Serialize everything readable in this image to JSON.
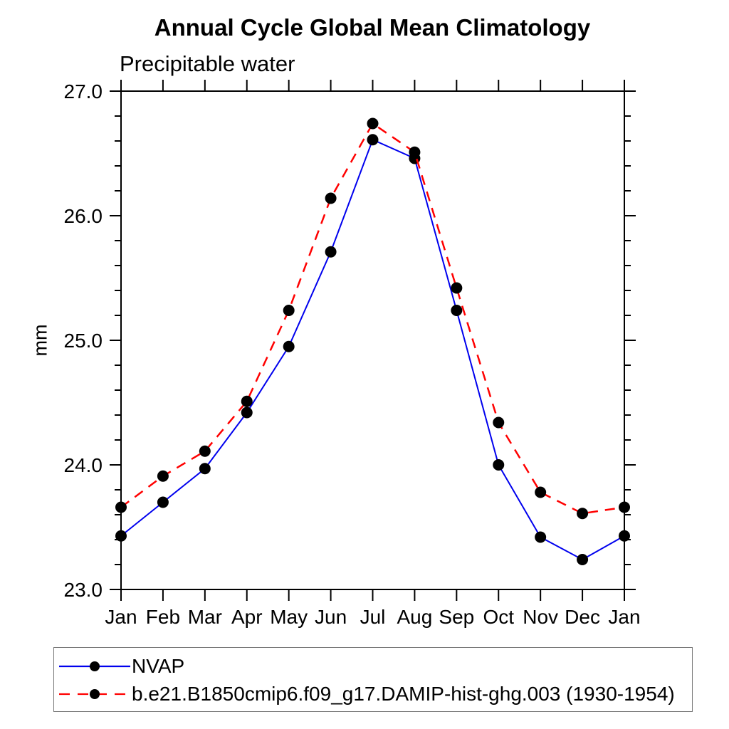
{
  "title": "Annual Cycle Global Mean Climatology",
  "subtitle": "Precipitable water",
  "ylabel": "mm",
  "legend": {
    "position": "bottom",
    "entries": [
      {
        "label": "NVAP",
        "color": "#0000ee",
        "style": "solid",
        "marker": "circle",
        "marker_color": "#000000"
      },
      {
        "label": "b.e21.B1850cmip6.f09_g17.DAMIP-hist-ghg.003 (1930-1954)",
        "color": "#ff0000",
        "style": "dashed",
        "marker": "circle",
        "marker_color": "#000000"
      }
    ]
  },
  "chart_data": {
    "type": "line",
    "title": "Annual Cycle Global Mean Climatology",
    "subtitle": "Precipitable water",
    "xlabel": "",
    "ylabel": "mm",
    "categories": [
      "Jan",
      "Feb",
      "Mar",
      "Apr",
      "May",
      "Jun",
      "Jul",
      "Aug",
      "Sep",
      "Oct",
      "Nov",
      "Dec",
      "Jan"
    ],
    "series": [
      {
        "name": "NVAP",
        "color": "#0000ee",
        "style": "solid",
        "marker": "circle",
        "marker_color": "#000000",
        "values": [
          23.43,
          23.7,
          23.97,
          24.42,
          24.95,
          25.71,
          26.61,
          26.46,
          25.24,
          24.0,
          23.42,
          23.24,
          23.43
        ]
      },
      {
        "name": "b.e21.B1850cmip6.f09_g17.DAMIP-hist-ghg.003 (1930-1954)",
        "color": "#ff0000",
        "style": "dashed",
        "marker": "circle",
        "marker_color": "#000000",
        "values": [
          23.66,
          23.91,
          24.11,
          24.51,
          25.24,
          26.14,
          26.74,
          26.51,
          25.42,
          24.34,
          23.78,
          23.61,
          23.66
        ]
      }
    ],
    "ylim": [
      23.0,
      27.0
    ],
    "ytick_major": [
      23.0,
      24.0,
      25.0,
      26.0,
      27.0
    ],
    "ytick_labels": [
      "23.0",
      "24.0",
      "25.0",
      "26.0",
      "27.0"
    ],
    "ytick_minor_step": 0.2,
    "grid": false,
    "legend_position": "bottom",
    "axis_color": "#000000"
  }
}
